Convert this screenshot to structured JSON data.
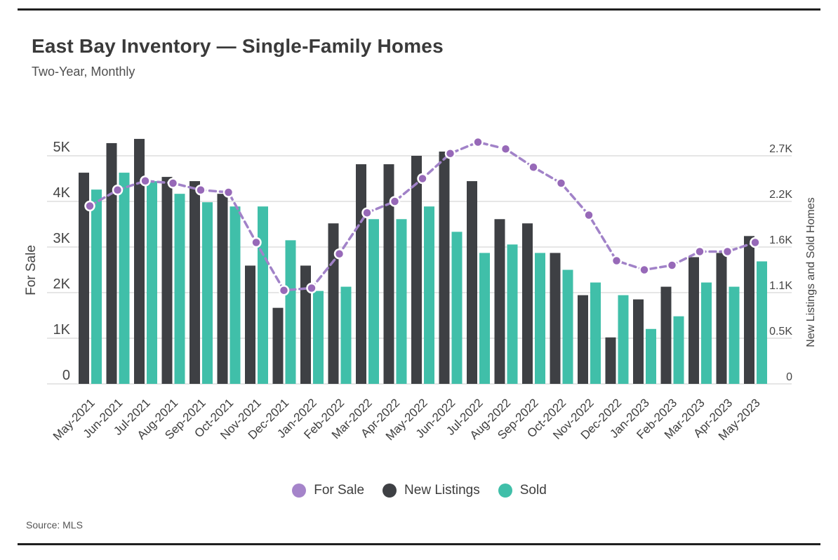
{
  "page": {
    "title": "East Bay Inventory — Single-Family Homes",
    "subtitle": "Two-Year, Monthly",
    "source": "Source: MLS"
  },
  "colors": {
    "for_sale_line": "#a182c8",
    "for_sale_point": "#9769b8",
    "for_sale_swatch": "#a584ca",
    "new_listings": "#3e4044",
    "sold": "#40bfa9",
    "gridline": "#d8d8d8",
    "tick_text": "#454545",
    "x_label_text": "#3d3d3d",
    "frame_rule": "#1f1f1f"
  },
  "chart_data": {
    "type": "composite (grouped bars + dashed line, dual y-axis)",
    "categories": [
      "May-2021",
      "Jun-2021",
      "Jul-2021",
      "Aug-2021",
      "Sep-2021",
      "Oct-2021",
      "Nov-2021",
      "Dec-2021",
      "Jan-2022",
      "Feb-2022",
      "Mar-2022",
      "Apr-2022",
      "May-2022",
      "Jun-2022",
      "Jul-2022",
      "Aug-2022",
      "Sep-2022",
      "Oct-2022",
      "Nov-2022",
      "Dec-2022",
      "Jan-2023",
      "Feb-2023",
      "Mar-2023",
      "Apr-2023",
      "May-2023"
    ],
    "series": [
      {
        "name": "For Sale",
        "type": "line",
        "style": "dashed-with-dots",
        "axis": "left",
        "values": [
          3900,
          4250,
          4450,
          4400,
          4250,
          4200,
          3100,
          2050,
          2100,
          2850,
          3750,
          4000,
          4500,
          5050,
          5300,
          5150,
          4750,
          4400,
          3700,
          2700,
          2500,
          2600,
          2900,
          2900,
          3100
        ]
      },
      {
        "name": "New Listings",
        "type": "bar",
        "axis": "right",
        "values": [
          2500,
          2850,
          2900,
          2450,
          2400,
          2250,
          1400,
          900,
          1400,
          1900,
          2600,
          2600,
          2700,
          2750,
          2400,
          1950,
          1900,
          1550,
          1050,
          550,
          1000,
          1150,
          1500,
          1550,
          1750
        ]
      },
      {
        "name": "Sold",
        "type": "bar",
        "axis": "right",
        "values": [
          2300,
          2500,
          2400,
          2250,
          2150,
          2100,
          2100,
          1700,
          1100,
          1150,
          1950,
          1950,
          2100,
          1800,
          1550,
          1650,
          1550,
          1350,
          1200,
          1050,
          650,
          800,
          1200,
          1150,
          1450
        ]
      }
    ],
    "left_axis": {
      "title": "For Sale",
      "ticks": [
        "0",
        "1K",
        "2K",
        "3K",
        "4K",
        "5K"
      ],
      "tick_values": [
        0,
        1000,
        2000,
        3000,
        4000,
        5000
      ],
      "range": [
        0,
        5500
      ]
    },
    "right_axis": {
      "title": "New Listings and Sold Homes",
      "ticks": [
        "0",
        "0.5K",
        "1.1K",
        "1.6K",
        "2.2K",
        "2.7K"
      ],
      "tick_values": [
        0,
        540,
        1080,
        1620,
        2160,
        2700
      ],
      "range": [
        0,
        2970
      ],
      "max_at_top_gridline": 2700
    },
    "legend": [
      {
        "label": "For Sale",
        "color_key": "for_sale_swatch"
      },
      {
        "label": "New Listings",
        "color_key": "new_listings"
      },
      {
        "label": "Sold",
        "color_key": "sold"
      }
    ],
    "grid": "horizontal gridlines on",
    "legend_position": "bottom-center"
  }
}
